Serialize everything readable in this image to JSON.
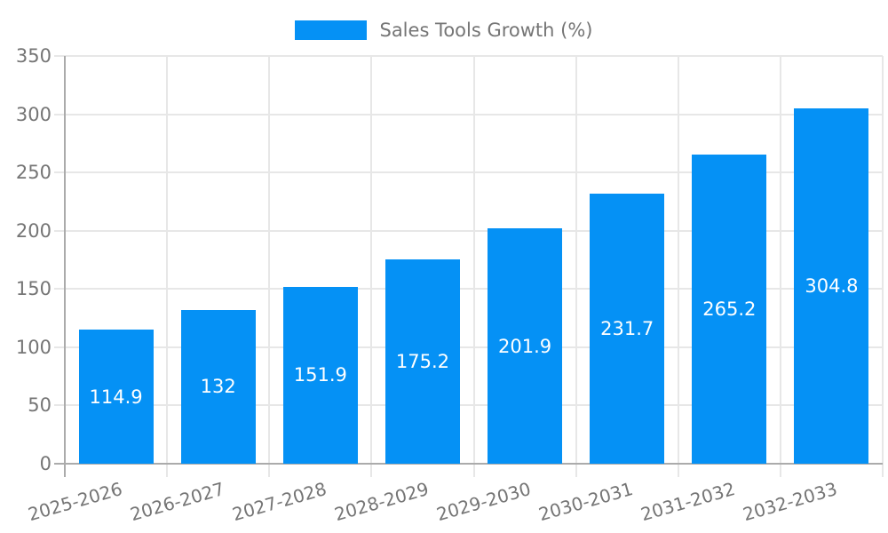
{
  "chart_data": {
    "type": "bar",
    "legend_label": "Sales Tools Growth (%)",
    "legend_position": "top",
    "categories": [
      "2025-2026",
      "2026-2027",
      "2027-2028",
      "2028-2029",
      "2029-2030",
      "2030-2031",
      "2031-2032",
      "2032-2033"
    ],
    "series": [
      {
        "name": "Sales Tools Growth (%)",
        "values": [
          114.9,
          132,
          151.9,
          175.2,
          201.9,
          231.7,
          265.2,
          304.8
        ]
      }
    ],
    "value_labels": [
      "114.9",
      "132",
      "151.9",
      "175.2",
      "201.9",
      "231.7",
      "265.2",
      "304.8"
    ],
    "xlabel": "",
    "ylabel": "",
    "ylim": [
      0,
      350
    ],
    "yticks": [
      0,
      50,
      100,
      150,
      200,
      250,
      300,
      350
    ],
    "grid": true,
    "colors": {
      "bar": "#0591f5",
      "axis": "#ababab",
      "grid": "#e7e7e7",
      "label": "#757575",
      "value_text": "#ffffff"
    }
  }
}
